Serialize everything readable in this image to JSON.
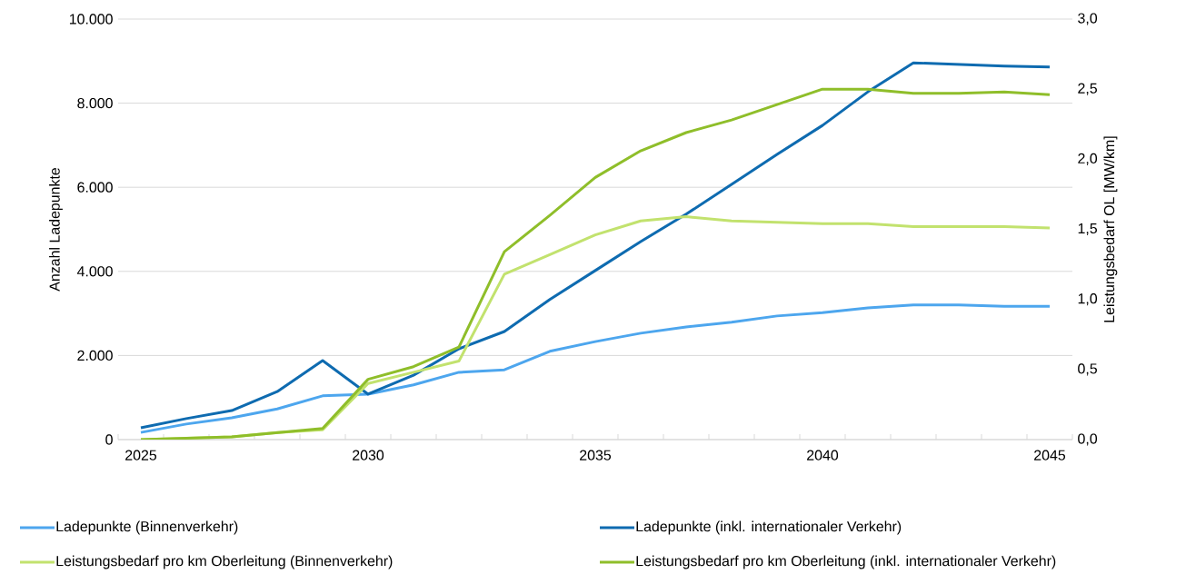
{
  "chart_data": {
    "type": "line",
    "categories": [
      "2025",
      null,
      null,
      null,
      null,
      "2030",
      null,
      null,
      null,
      null,
      "2035",
      null,
      null,
      null,
      null,
      "2040",
      null,
      null,
      null,
      null,
      "2045"
    ],
    "ylabel": "Anzahl Ladepunkte",
    "y2label": "Leistungsbedarf OL [MW/km]",
    "ylim": [
      0,
      10000
    ],
    "yticks": [
      {
        "value": 0,
        "label": "0"
      },
      {
        "value": 2000,
        "label": "2.000"
      },
      {
        "value": 4000,
        "label": "4.000"
      },
      {
        "value": 6000,
        "label": "6.000"
      },
      {
        "value": 8000,
        "label": "8.000"
      },
      {
        "value": 10000,
        "label": "10.000"
      }
    ],
    "y2lim": [
      0,
      3
    ],
    "y2ticks": [
      {
        "value": 0,
        "label": "0,0"
      },
      {
        "value": 0.5,
        "label": "0,5"
      },
      {
        "value": 1,
        "label": "1,0"
      },
      {
        "value": 1.5,
        "label": "1,5"
      },
      {
        "value": 2,
        "label": "2,0"
      },
      {
        "value": 2.5,
        "label": "2,5"
      },
      {
        "value": 3,
        "label": "3,0"
      }
    ],
    "grid": "y",
    "legend": "bottom",
    "marker": "none",
    "line_style": "solid",
    "series": [
      {
        "name": "Ladepunkte (Binnenverkehr)",
        "color": "#4da6ee",
        "values": [
          170,
          370,
          520,
          730,
          1040,
          1080,
          1300,
          1600,
          1660,
          2100,
          2330,
          2530,
          2680,
          2790,
          2940,
          3020,
          3130,
          3200,
          3200,
          3170,
          3170
        ]
      },
      {
        "name": "Ladepunkte (inkl. internationaler Verkehr)",
        "color": "#0e6bb0",
        "values": [
          280,
          500,
          690,
          1140,
          1880,
          1080,
          1530,
          2160,
          2570,
          3330,
          4020,
          4710,
          5360,
          6070,
          6780,
          7470,
          8270,
          8960,
          8920,
          8880,
          8860
        ]
      },
      {
        "name": "Leistungsbedarf pro km Oberleitung (Binnenverkehr)",
        "color": "#c2e26e",
        "axis": "y2",
        "values": [
          0,
          0.01,
          0.02,
          0.05,
          0.07,
          0.4,
          0.48,
          0.56,
          1.18,
          1.32,
          1.46,
          1.56,
          1.59,
          1.56,
          1.55,
          1.54,
          1.54,
          1.52,
          1.52,
          1.52,
          1.51
        ]
      },
      {
        "name": "Leistungsbedarf pro km Oberleitung (inkl. internationaler Verkehr)",
        "color": "#8fbe2a",
        "axis": "y2",
        "values": [
          0,
          0.01,
          0.02,
          0.05,
          0.08,
          0.43,
          0.52,
          0.66,
          1.34,
          1.6,
          1.87,
          2.06,
          2.19,
          2.28,
          2.39,
          2.5,
          2.5,
          2.47,
          2.47,
          2.48,
          2.46
        ]
      }
    ]
  }
}
